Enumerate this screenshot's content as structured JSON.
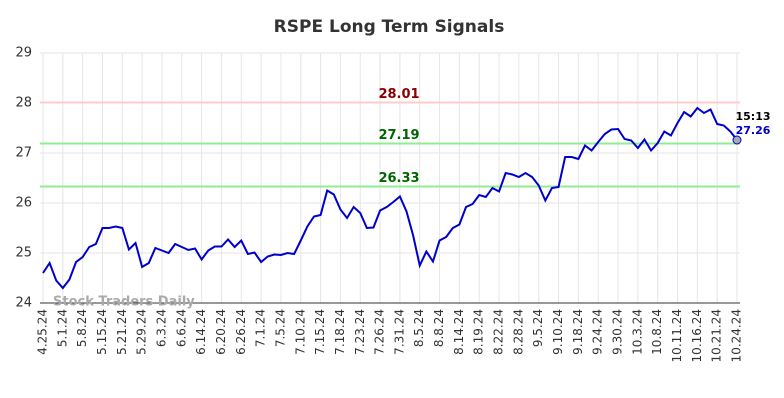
{
  "chart_data": {
    "type": "line",
    "title": "RSPE Long Term Signals",
    "watermark": "Stock Traders Daily",
    "categories": [
      "4.25.24",
      null,
      null,
      "5.1.24",
      null,
      null,
      "5.8.24",
      null,
      null,
      "5.15.24",
      null,
      null,
      "5.21.24",
      null,
      null,
      "5.29.24",
      null,
      null,
      "6.3.24",
      null,
      null,
      "6.6.24",
      null,
      null,
      "6.14.24",
      null,
      null,
      "6.20.24",
      null,
      null,
      "6.26.24",
      null,
      null,
      "7.1.24",
      null,
      null,
      "7.5.24",
      null,
      null,
      "7.10.24",
      null,
      null,
      "7.15.24",
      null,
      null,
      "7.18.24",
      null,
      null,
      "7.23.24",
      null,
      null,
      "7.26.24",
      null,
      null,
      "7.31.24",
      null,
      null,
      "8.5.24",
      null,
      null,
      "8.8.24",
      null,
      null,
      "8.14.24",
      null,
      null,
      "8.19.24",
      null,
      null,
      "8.22.24",
      null,
      null,
      "8.28.24",
      null,
      null,
      "9.5.24",
      null,
      null,
      "9.10.24",
      null,
      null,
      "9.18.24",
      null,
      null,
      "9.24.24",
      null,
      null,
      "9.30.24",
      null,
      null,
      "10.3.24",
      null,
      null,
      "10.8.24",
      null,
      null,
      "10.11.24",
      null,
      null,
      "10.16.24",
      null,
      null,
      "10.21.24",
      null,
      null,
      "10.24.24"
    ],
    "series": [
      {
        "color": "#0000cc",
        "values": [
          24.6,
          24.8,
          24.45,
          24.3,
          24.47,
          24.82,
          24.92,
          25.12,
          25.18,
          25.5,
          25.5,
          25.53,
          25.5,
          25.07,
          25.2,
          24.72,
          24.8,
          25.1,
          25.05,
          25.0,
          25.18,
          25.12,
          25.06,
          25.09,
          24.87,
          25.05,
          25.13,
          25.13,
          25.27,
          25.12,
          25.25,
          24.98,
          25.01,
          24.82,
          24.93,
          24.97,
          24.96,
          25.0,
          24.98,
          25.25,
          25.53,
          25.73,
          25.76,
          26.25,
          26.17,
          25.87,
          25.7,
          25.92,
          25.8,
          25.5,
          25.51,
          25.85,
          25.92,
          26.02,
          26.13,
          25.83,
          25.35,
          24.75,
          25.03,
          24.83,
          25.25,
          25.32,
          25.5,
          25.57,
          25.92,
          25.98,
          26.16,
          26.12,
          26.3,
          26.23,
          26.6,
          26.57,
          26.52,
          26.6,
          26.52,
          26.35,
          26.05,
          26.3,
          26.32,
          26.92,
          26.92,
          26.88,
          27.15,
          27.05,
          27.22,
          27.38,
          27.47,
          27.48,
          27.28,
          27.25,
          27.1,
          27.27,
          27.05,
          27.2,
          27.43,
          27.35,
          27.6,
          27.82,
          27.73,
          27.9,
          27.8,
          27.87,
          27.58,
          27.55,
          27.43,
          27.26
        ]
      }
    ],
    "hlines": [
      {
        "value": 28.01,
        "color": "#ffcccc",
        "label_color": "#8b0000"
      },
      {
        "value": 27.19,
        "color": "#90ee90",
        "label_color": "#006400"
      },
      {
        "value": 26.33,
        "color": "#90ee90",
        "label_color": "#006400"
      }
    ],
    "last_time": "15:13",
    "last_value": 27.26,
    "ylim": [
      24,
      29
    ],
    "yticks": [
      24,
      25,
      26,
      27,
      28,
      29
    ],
    "grid": true
  }
}
